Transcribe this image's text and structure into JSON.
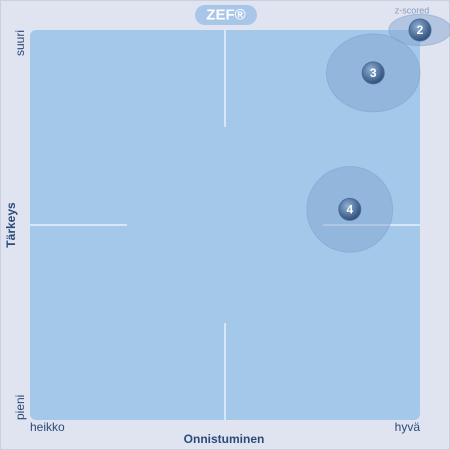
{
  "chart_data": {
    "type": "scatter",
    "title": "ZEF®",
    "subtitle": "z-scored",
    "xlabel": "Onnistuminen",
    "ylabel": "Tärkeys",
    "xlim": [
      0,
      100
    ],
    "ylim": [
      0,
      100
    ],
    "xticks": [
      {
        "value": 0,
        "label": "heikko"
      },
      {
        "value": 100,
        "label": "hyvä"
      }
    ],
    "yticks": [
      {
        "value": 0,
        "label": "pieni"
      },
      {
        "value": 100,
        "label": "suuri"
      }
    ],
    "labels": [
      "2",
      "3",
      "4"
    ],
    "x": [
      100,
      88,
      82
    ],
    "values": [
      100,
      89,
      54
    ],
    "x_spread": [
      8,
      12,
      11
    ],
    "y_spread": [
      4,
      10,
      11
    ],
    "color": "#4a6d98",
    "spread_color": "#7f9fcb"
  }
}
